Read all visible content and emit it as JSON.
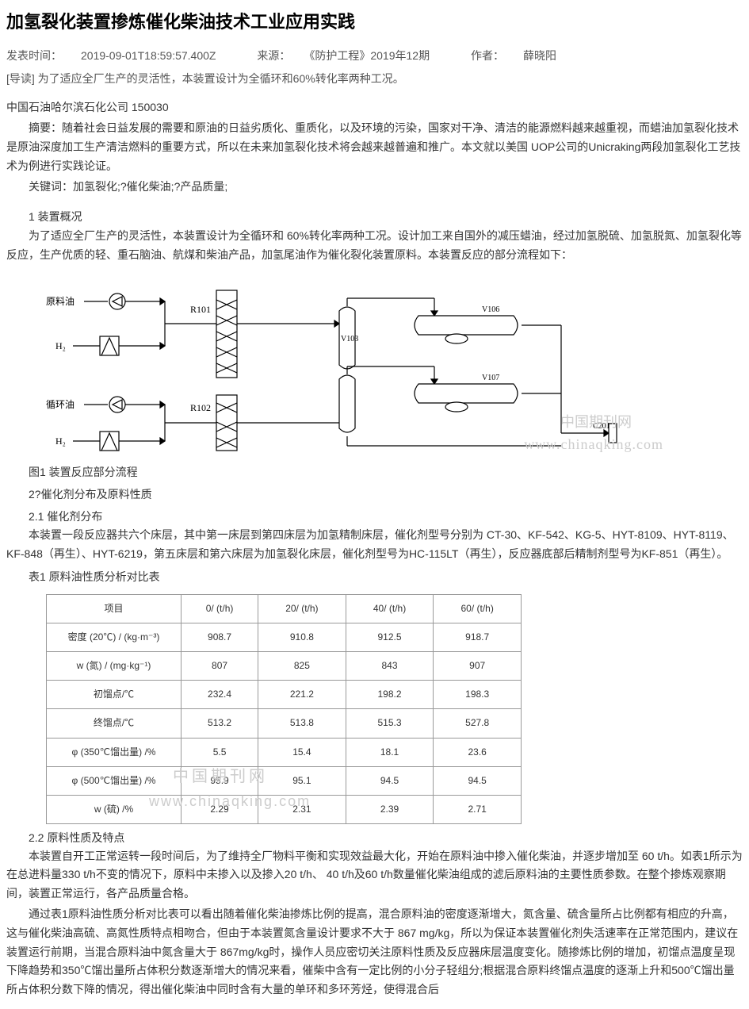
{
  "title": "加氢裂化装置掺炼催化柴油技术工业应用实践",
  "meta": {
    "pub_time_label": "发表时间：",
    "pub_time": "2019-09-01T18:59:57.400Z",
    "source_label": "来源：",
    "source": "《防护工程》2019年12期",
    "author_label": "作者：",
    "author": "薛晓阳"
  },
  "intro_label": "[导读] ",
  "intro_text": "为了适应全厂生产的灵活性，本装置设计为全循环和60%转化率两种工况。",
  "affiliation": "中国石油哈尔滨石化公司   150030",
  "abstract_label": "摘要：",
  "abstract": "随着社会日益发展的需要和原油的日益劣质化、重质化，以及环境的污染，国家对干净、清洁的能源燃料越来越重视，而蜡油加氢裂化技术是原油深度加工生产清洁燃料的重要方式，所以在未来加氢裂化技术将会越来越普遍和推广。本文就以美国 UOP公司的Unicraking两段加氢裂化工艺技术为例进行实践论证。",
  "keywords_label": "关键词：",
  "keywords": "加氢裂化;?催化柴油;?产品质量;",
  "sections": {
    "s1_heading": "1 装置概况",
    "s1_para": "为了适应全厂生产的灵活性，本装置设计为全循环和 60%转化率两种工况。设计加工来自国外的减压蜡油，经过加氢脱硫、加氢脱氮、加氢裂化等反应，生产优质的轻、重石脑油、航煤和柴油产品，加氢尾油作为催化裂化装置原料。本装置反应的部分流程如下：",
    "fig1_caption": "图1 装置反应部分流程",
    "s2_heading": "2?催化剂分布及原料性质",
    "s21_heading": "2.1 催化剂分布",
    "s21_para": "本装置一段反应器共六个床层，其中第一床层到第四床层为加氢精制床层，催化剂型号分别为 CT-30、KF-542、KG-5、HYT-8109、HYT-8119、KF-848（再生）、HYT-6219，第五床层和第六床层为加氢裂化床层，催化剂型号为HC-115LT（再生），反应器底部后精制剂型号为KF-851（再生）。",
    "table1_caption": "表1  原料油性质分析对比表",
    "s22_heading": "2.2 原料性质及特点",
    "s22_p1": "本装置自开工正常运转一段时间后，为了维持全厂物料平衡和实现效益最大化，开始在原料油中掺入催化柴油，并逐步增加至 60 t/h。如表1所示为在总进料量330 t/h不变的情况下，原料中未掺入以及掺入20 t/h、 40 t/h及60 t/h数量催化柴油组成的滤后原料油的主要性质参数。在整个掺炼观察期间，装置正常运行，各产品质量合格。",
    "s22_p2": "通过表1原料油性质分析对比表可以看出随着催化柴油掺炼比例的提高，混合原料油的密度逐渐增大，氮含量、硫含量所占比例都有相应的升高，这与催化柴油高硫、高氮性质特点相吻合，但由于本装置氮含量设计要求不大于 867 mg/kg，所以为保证本装置催化剂失活速率在正常范围内，建议在装置运行前期，当混合原料油中氮含量大于 867mg/kg时，操作人员应密切关注原料性质及反应器床层温度变化。随掺炼比例的增加，初馏点温度呈现下降趋势和350℃馏出量所占体积分数逐渐增大的情况来看，催柴中含有一定比例的小分子轻组分;根据混合原料终馏点温度的逐渐上升和500℃馏出量所占体积分数下降的情况，得出催化柴油中同时含有大量的单环和多环芳烃，使得混合后"
  },
  "diagram": {
    "labels": {
      "feed_oil": "原料油",
      "h2_a": "H₂",
      "recycle_oil": "循环油",
      "h2_b": "H₂",
      "r101": "R101",
      "r102": "R102",
      "v103": "V103",
      "v106": "V106",
      "v107": "V107",
      "c201": "C201"
    },
    "colors": {
      "stroke": "#000000",
      "fill": "#ffffff",
      "text": "#000000"
    },
    "line_width": 1.2,
    "font_size": 12
  },
  "table1": {
    "columns": [
      "项目",
      "0/ (t/h)",
      "20/ (t/h)",
      "40/ (t/h)",
      "60/ (t/h)"
    ],
    "rows": [
      [
        "密度 (20℃) / (kg·m⁻³)",
        "908.7",
        "910.8",
        "912.5",
        "918.7"
      ],
      [
        "w (氮) / (mg·kg⁻¹)",
        "807",
        "825",
        "843",
        "907"
      ],
      [
        "初馏点/℃",
        "232.4",
        "221.2",
        "198.2",
        "198.3"
      ],
      [
        "终馏点/℃",
        "513.2",
        "513.8",
        "515.3",
        "527.8"
      ],
      [
        "φ (350℃馏出量) /%",
        "5.5",
        "15.4",
        "18.1",
        "23.6"
      ],
      [
        "φ (500℃馏出量) /%",
        "95.9",
        "95.1",
        "94.5",
        "94.5"
      ],
      [
        "w (硫) /%",
        "2.29",
        "2.31",
        "2.39",
        "2.71"
      ]
    ],
    "border_color": "#999999",
    "font_size": 12,
    "header_bg": "#ffffff"
  },
  "watermark": {
    "text_cn": "中国期刊网",
    "text_en": "www.chinaqking.com",
    "color": "#cccccc"
  }
}
